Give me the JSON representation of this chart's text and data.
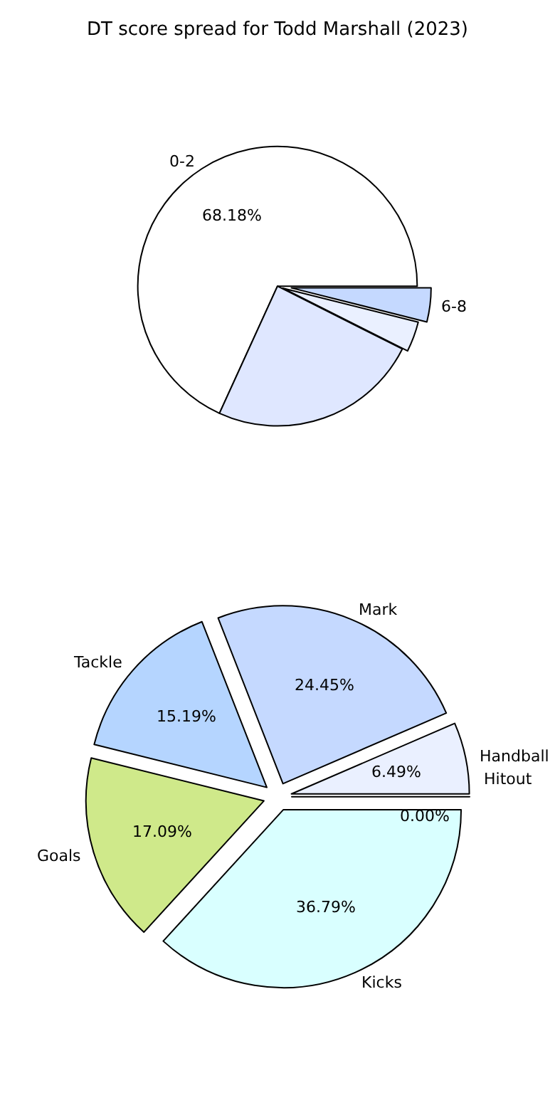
{
  "chart_data": [
    {
      "type": "pie",
      "title": "DT score spread for Todd Marshall (2023)",
      "categories": [
        "0-2",
        null,
        null,
        "6-8"
      ],
      "values": [
        68.18,
        24.4,
        3.5,
        3.92
      ],
      "colors": [
        "#ffffff",
        "#dfe7ff",
        "#eaf0ff",
        "#c5d9ff"
      ],
      "value_labels": [
        "68.18%",
        null,
        null,
        null
      ]
    },
    {
      "type": "pie",
      "categories": [
        "Handball",
        "Mark",
        "Tackle",
        "Goals",
        "Kicks",
        "Hitout"
      ],
      "values": [
        6.49,
        24.45,
        15.19,
        17.09,
        36.79,
        0.0
      ],
      "colors": [
        "#eaf0ff",
        "#c5d9ff",
        "#b5d5ff",
        "#cfe98a",
        "#d9ffff",
        "#f0f4ff"
      ],
      "value_labels": [
        "6.49%",
        "24.45%",
        "15.19%",
        "17.09%",
        "36.79%",
        "0.00%"
      ]
    }
  ]
}
